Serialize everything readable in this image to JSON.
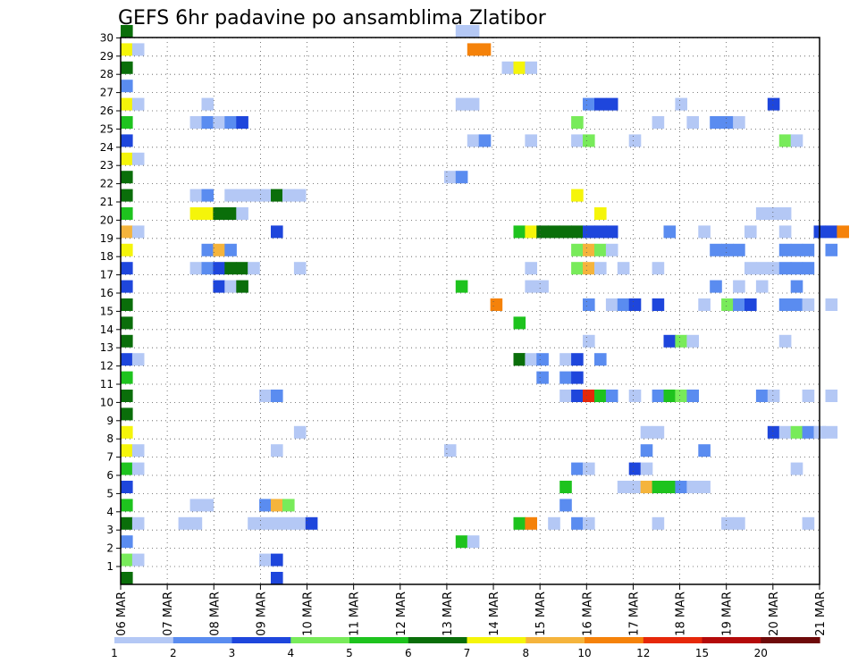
{
  "chart_data": {
    "type": "heatmap",
    "title": "GEFS 6hr padavine po ansamblima Zlatibor",
    "xlabel": "",
    "ylabel": "",
    "x_tick_labels": [
      "06 MAR",
      "07 MAR",
      "08 MAR",
      "09 MAR",
      "10 MAR",
      "11 MAR",
      "12 MAR",
      "13 MAR",
      "14 MAR",
      "15 MAR",
      "16 MAR",
      "17 MAR",
      "18 MAR",
      "19 MAR",
      "20 MAR",
      "21 MAR"
    ],
    "y_tick_labels": [
      "1",
      "2",
      "3",
      "4",
      "5",
      "6",
      "7",
      "8",
      "9",
      "10",
      "11",
      "12",
      "13",
      "14",
      "15",
      "16",
      "17",
      "18",
      "19",
      "20",
      "21",
      "22",
      "23",
      "24",
      "25",
      "26",
      "27",
      "28",
      "29",
      "30"
    ],
    "xlim": [
      0,
      60
    ],
    "ylim": [
      0,
      31
    ],
    "grid": true,
    "colorbar": {
      "levels": [
        "1",
        "2",
        "3",
        "4",
        "5",
        "6",
        "7",
        "8",
        "10",
        "12",
        "15",
        "20"
      ],
      "colors": [
        "#b4c8f5",
        "#5a8cf0",
        "#1e46dc",
        "#78eb5a",
        "#1ec31e",
        "#0a6e0a",
        "#f5f50a",
        "#f5b43c",
        "#f5820a",
        "#e6280a",
        "#b40a0a",
        "#6e0a0a"
      ]
    },
    "cells": [
      [
        0,
        0,
        6
      ],
      [
        0,
        1,
        4
      ],
      [
        0,
        2,
        2
      ],
      [
        0,
        3,
        6
      ],
      [
        0,
        4,
        5
      ],
      [
        0,
        5,
        3
      ],
      [
        0,
        6,
        5
      ],
      [
        0,
        7,
        7
      ],
      [
        0,
        8,
        7
      ],
      [
        0,
        9,
        6
      ],
      [
        0,
        10,
        6
      ],
      [
        0,
        11,
        5
      ],
      [
        0,
        12,
        3
      ],
      [
        0,
        13,
        6
      ],
      [
        0,
        14,
        6
      ],
      [
        0,
        15,
        6
      ],
      [
        0,
        16,
        3
      ],
      [
        0,
        17,
        3
      ],
      [
        0,
        18,
        7
      ],
      [
        0,
        19,
        8
      ],
      [
        0,
        20,
        5
      ],
      [
        0,
        21,
        6
      ],
      [
        0,
        22,
        6
      ],
      [
        0,
        23,
        7
      ],
      [
        0,
        24,
        3
      ],
      [
        0,
        25,
        5
      ],
      [
        0,
        26,
        7
      ],
      [
        0,
        27,
        2
      ],
      [
        0,
        28,
        6
      ],
      [
        0,
        29,
        7
      ],
      [
        0,
        30,
        6
      ],
      [
        1,
        1,
        1
      ],
      [
        1,
        3,
        1
      ],
      [
        1,
        6,
        1
      ],
      [
        1,
        7,
        1
      ],
      [
        1,
        12,
        1
      ],
      [
        1,
        19,
        1
      ],
      [
        1,
        23,
        1
      ],
      [
        1,
        26,
        1
      ],
      [
        1,
        29,
        1
      ],
      [
        5,
        3,
        1
      ],
      [
        6,
        3,
        1
      ],
      [
        6,
        4,
        1
      ],
      [
        6,
        17,
        1
      ],
      [
        6,
        20,
        7
      ],
      [
        6,
        21,
        1
      ],
      [
        6,
        25,
        1
      ],
      [
        7,
        4,
        1
      ],
      [
        7,
        20,
        7
      ],
      [
        7,
        21,
        2
      ],
      [
        7,
        25,
        2
      ],
      [
        7,
        26,
        1
      ],
      [
        7,
        17,
        2
      ],
      [
        7,
        18,
        2
      ],
      [
        8,
        20,
        6
      ],
      [
        8,
        17,
        3
      ],
      [
        8,
        18,
        8
      ],
      [
        8,
        16,
        3
      ],
      [
        8,
        25,
        1
      ],
      [
        9,
        20,
        6
      ],
      [
        9,
        21,
        1
      ],
      [
        9,
        17,
        6
      ],
      [
        9,
        18,
        2
      ],
      [
        9,
        16,
        1
      ],
      [
        9,
        25,
        2
      ],
      [
        10,
        16,
        1
      ],
      [
        10,
        17,
        6
      ],
      [
        10,
        21,
        1
      ],
      [
        10,
        20,
        1
      ],
      [
        10,
        25,
        3
      ],
      [
        10,
        16,
        6
      ],
      [
        11,
        3,
        1
      ],
      [
        11,
        21,
        1
      ],
      [
        11,
        17,
        1
      ],
      [
        12,
        1,
        1
      ],
      [
        12,
        3,
        1
      ],
      [
        12,
        4,
        2
      ],
      [
        12,
        10,
        1
      ],
      [
        12,
        21,
        1
      ],
      [
        13,
        0,
        3
      ],
      [
        13,
        1,
        3
      ],
      [
        13,
        4,
        8
      ],
      [
        13,
        7,
        1
      ],
      [
        13,
        10,
        2
      ],
      [
        13,
        19,
        3
      ],
      [
        13,
        21,
        6
      ],
      [
        13,
        3,
        1
      ],
      [
        14,
        4,
        4
      ],
      [
        14,
        3,
        1
      ],
      [
        14,
        21,
        1
      ],
      [
        15,
        3,
        1
      ],
      [
        15,
        17,
        1
      ],
      [
        15,
        8,
        1
      ],
      [
        15,
        21,
        1
      ],
      [
        16,
        3,
        3
      ],
      [
        28,
        7,
        1
      ],
      [
        28,
        22,
        1
      ],
      [
        29,
        2,
        5
      ],
      [
        29,
        16,
        5
      ],
      [
        29,
        22,
        2
      ],
      [
        29,
        26,
        1
      ],
      [
        29,
        30,
        1
      ],
      [
        30,
        2,
        1
      ],
      [
        30,
        24,
        1
      ],
      [
        30,
        26,
        1
      ],
      [
        30,
        29,
        9
      ],
      [
        30,
        30,
        1
      ],
      [
        31,
        24,
        2
      ],
      [
        31,
        29,
        9
      ],
      [
        32,
        15,
        9
      ],
      [
        33,
        28,
        1
      ],
      [
        34,
        3,
        5
      ],
      [
        34,
        12,
        6
      ],
      [
        34,
        14,
        5
      ],
      [
        34,
        19,
        5
      ],
      [
        34,
        28,
        7
      ],
      [
        34,
        12,
        6
      ],
      [
        35,
        3,
        9
      ],
      [
        35,
        12,
        1
      ],
      [
        35,
        16,
        1
      ],
      [
        35,
        17,
        1
      ],
      [
        35,
        24,
        1
      ],
      [
        35,
        28,
        1
      ],
      [
        35,
        19,
        7
      ],
      [
        36,
        12,
        2
      ],
      [
        36,
        11,
        2
      ],
      [
        36,
        19,
        6
      ],
      [
        36,
        16,
        1
      ],
      [
        37,
        3,
        1
      ],
      [
        37,
        19,
        6
      ],
      [
        38,
        5,
        5
      ],
      [
        38,
        4,
        2
      ],
      [
        38,
        10,
        1
      ],
      [
        38,
        11,
        2
      ],
      [
        38,
        12,
        1
      ],
      [
        38,
        19,
        6
      ],
      [
        39,
        3,
        2
      ],
      [
        39,
        6,
        2
      ],
      [
        39,
        10,
        3
      ],
      [
        39,
        11,
        3
      ],
      [
        39,
        12,
        3
      ],
      [
        39,
        17,
        4
      ],
      [
        39,
        18,
        4
      ],
      [
        39,
        24,
        1
      ],
      [
        39,
        25,
        4
      ],
      [
        39,
        19,
        6
      ],
      [
        39,
        21,
        7
      ],
      [
        40,
        3,
        1
      ],
      [
        40,
        6,
        1
      ],
      [
        40,
        10,
        10
      ],
      [
        40,
        13,
        1
      ],
      [
        40,
        15,
        2
      ],
      [
        40,
        17,
        8
      ],
      [
        40,
        18,
        8
      ],
      [
        40,
        19,
        3
      ],
      [
        40,
        24,
        4
      ],
      [
        40,
        26,
        2
      ],
      [
        41,
        10,
        5
      ],
      [
        41,
        12,
        2
      ],
      [
        41,
        19,
        3
      ],
      [
        41,
        20,
        7
      ],
      [
        41,
        26,
        3
      ],
      [
        41,
        18,
        4
      ],
      [
        41,
        17,
        1
      ],
      [
        42,
        10,
        2
      ],
      [
        42,
        15,
        1
      ],
      [
        42,
        18,
        1
      ],
      [
        42,
        19,
        3
      ],
      [
        42,
        26,
        3
      ],
      [
        43,
        5,
        1
      ],
      [
        43,
        15,
        2
      ],
      [
        43,
        17,
        1
      ],
      [
        44,
        5,
        1
      ],
      [
        44,
        6,
        3
      ],
      [
        44,
        10,
        1
      ],
      [
        44,
        15,
        3
      ],
      [
        44,
        24,
        1
      ],
      [
        45,
        5,
        8
      ],
      [
        45,
        6,
        1
      ],
      [
        45,
        7,
        2
      ],
      [
        45,
        8,
        1
      ],
      [
        46,
        3,
        1
      ],
      [
        46,
        5,
        5
      ],
      [
        46,
        8,
        1
      ],
      [
        46,
        10,
        2
      ],
      [
        46,
        15,
        3
      ],
      [
        46,
        17,
        1
      ],
      [
        46,
        25,
        1
      ],
      [
        47,
        5,
        5
      ],
      [
        47,
        10,
        5
      ],
      [
        47,
        13,
        3
      ],
      [
        47,
        19,
        2
      ],
      [
        48,
        5,
        2
      ],
      [
        48,
        10,
        4
      ],
      [
        48,
        13,
        4
      ],
      [
        48,
        26,
        1
      ],
      [
        49,
        5,
        1
      ],
      [
        49,
        10,
        2
      ],
      [
        49,
        13,
        1
      ],
      [
        49,
        25,
        1
      ],
      [
        50,
        5,
        1
      ],
      [
        50,
        7,
        2
      ],
      [
        50,
        15,
        1
      ],
      [
        50,
        19,
        1
      ],
      [
        51,
        16,
        2
      ],
      [
        51,
        18,
        2
      ],
      [
        51,
        25,
        2
      ],
      [
        52,
        15,
        4
      ],
      [
        52,
        18,
        2
      ],
      [
        52,
        25,
        2
      ],
      [
        52,
        3,
        1
      ],
      [
        53,
        15,
        2
      ],
      [
        53,
        16,
        1
      ],
      [
        53,
        18,
        2
      ],
      [
        53,
        25,
        1
      ],
      [
        53,
        3,
        1
      ],
      [
        54,
        15,
        3
      ],
      [
        54,
        17,
        1
      ],
      [
        54,
        19,
        1
      ],
      [
        55,
        10,
        2
      ],
      [
        55,
        16,
        1
      ],
      [
        55,
        17,
        1
      ],
      [
        55,
        20,
        1
      ],
      [
        56,
        8,
        3
      ],
      [
        56,
        10,
        1
      ],
      [
        56,
        17,
        1
      ],
      [
        56,
        20,
        1
      ],
      [
        56,
        26,
        3
      ],
      [
        57,
        8,
        1
      ],
      [
        57,
        13,
        1
      ],
      [
        57,
        15,
        2
      ],
      [
        57,
        17,
        2
      ],
      [
        57,
        18,
        2
      ],
      [
        57,
        19,
        1
      ],
      [
        57,
        20,
        1
      ],
      [
        57,
        24,
        4
      ],
      [
        58,
        6,
        1
      ],
      [
        58,
        8,
        4
      ],
      [
        58,
        15,
        2
      ],
      [
        58,
        16,
        2
      ],
      [
        58,
        17,
        2
      ],
      [
        58,
        18,
        2
      ],
      [
        58,
        24,
        1
      ],
      [
        59,
        8,
        2
      ],
      [
        59,
        10,
        1
      ],
      [
        59,
        15,
        1
      ],
      [
        59,
        17,
        2
      ],
      [
        59,
        18,
        2
      ],
      [
        59,
        3,
        1
      ],
      [
        60,
        8,
        1
      ],
      [
        60,
        19,
        3
      ],
      [
        60,
        8,
        1
      ],
      [
        61,
        8,
        1
      ],
      [
        61,
        10,
        1
      ],
      [
        61,
        15,
        1
      ],
      [
        61,
        18,
        2
      ],
      [
        61,
        19,
        3
      ],
      [
        62,
        19,
        9
      ]
    ]
  }
}
